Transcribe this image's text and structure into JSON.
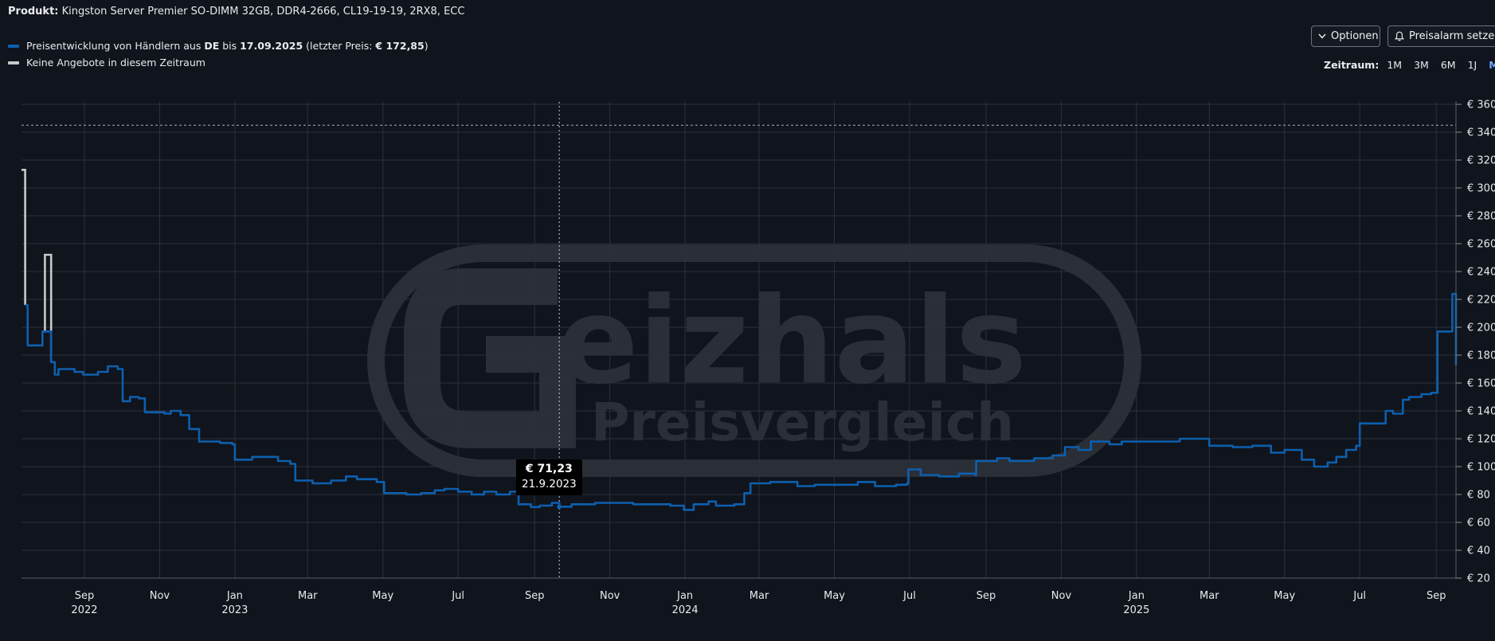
{
  "product": {
    "label": "Produkt:",
    "name": "Kingston Server Premier SO-DIMM 32GB, DDR4-2666, CL19-19-19, 2RX8, ECC"
  },
  "legend": {
    "series1": {
      "pre": "Preisentwicklung von Händlern aus ",
      "country": "DE",
      "mid": " bis ",
      "date": "17.09.2025",
      "post1": " (letzter Preis: ",
      "price": "€ 172,85",
      "post2": ")",
      "color": "#0d5fae"
    },
    "series2": {
      "label": "Keine Angebote in diesem Zeitraum",
      "color": "#c9c9c9"
    }
  },
  "toolbar": {
    "options_label": "Optionen",
    "alarm_label": "Preisalarm setzen",
    "zeitraum_label": "Zeitraum:",
    "zeitraum_options": [
      "1M",
      "3M",
      "6M",
      "1J",
      "Max"
    ],
    "zeitraum_active": "Max"
  },
  "tooltip": {
    "value": "€ 71,23",
    "date": "21.9.2023"
  },
  "watermark": {
    "logo_text": "eizhals",
    "sub_text": "Preisvergleich"
  },
  "chart_data": {
    "type": "line",
    "grid": true,
    "y_axis_side": "right",
    "ylim": [
      20,
      360
    ],
    "y_ticks": [
      "€ 360",
      "€ 340",
      "€ 320",
      "€ 300",
      "€ 280",
      "€ 260",
      "€ 240",
      "€ 220",
      "€ 200",
      "€ 180",
      "€ 160",
      "€ 140",
      "€ 120",
      "€ 100",
      "€ 80",
      "€ 60",
      "€ 40",
      "€ 20"
    ],
    "reference_line": {
      "y": 345,
      "style": "dashed"
    },
    "hover_marker": {
      "x": "2023-09-21",
      "y": 71.23
    },
    "x_ticks": [
      {
        "date": "2022-09-01",
        "month": "Sep",
        "year": "2022"
      },
      {
        "date": "2022-11-01",
        "month": "Nov",
        "year": ""
      },
      {
        "date": "2023-01-01",
        "month": "Jan",
        "year": "2023"
      },
      {
        "date": "2023-03-01",
        "month": "Mar",
        "year": ""
      },
      {
        "date": "2023-05-01",
        "month": "May",
        "year": ""
      },
      {
        "date": "2023-07-01",
        "month": "Jul",
        "year": ""
      },
      {
        "date": "2023-09-01",
        "month": "Sep",
        "year": ""
      },
      {
        "date": "2023-11-01",
        "month": "Nov",
        "year": ""
      },
      {
        "date": "2024-01-01",
        "month": "Jan",
        "year": "2024"
      },
      {
        "date": "2024-03-01",
        "month": "Mar",
        "year": ""
      },
      {
        "date": "2024-05-01",
        "month": "May",
        "year": ""
      },
      {
        "date": "2024-07-01",
        "month": "Jul",
        "year": ""
      },
      {
        "date": "2024-09-01",
        "month": "Sep",
        "year": ""
      },
      {
        "date": "2024-11-01",
        "month": "Nov",
        "year": ""
      },
      {
        "date": "2025-01-01",
        "month": "Jan",
        "year": "2025"
      },
      {
        "date": "2025-03-01",
        "month": "Mar",
        "year": ""
      },
      {
        "date": "2025-05-01",
        "month": "May",
        "year": ""
      },
      {
        "date": "2025-07-01",
        "month": "Jul",
        "year": ""
      },
      {
        "date": "2025-09-01",
        "month": "Sep",
        "year": ""
      }
    ],
    "xlim": [
      "2022-07-12",
      "2025-09-17"
    ],
    "series": [
      {
        "name": "Preisentwicklung von Händlern aus DE",
        "color": "#0d5fae",
        "points": [
          [
            "2022-07-15",
            216
          ],
          [
            "2022-07-17",
            187
          ],
          [
            "2022-07-27",
            187
          ],
          [
            "2022-07-29",
            197
          ],
          [
            "2022-08-05",
            175
          ],
          [
            "2022-08-08",
            166
          ],
          [
            "2022-08-11",
            170
          ],
          [
            "2022-08-24",
            168
          ],
          [
            "2022-08-31",
            166
          ],
          [
            "2022-09-12",
            168
          ],
          [
            "2022-09-20",
            172
          ],
          [
            "2022-09-28",
            170
          ],
          [
            "2022-10-02",
            147
          ],
          [
            "2022-10-08",
            150
          ],
          [
            "2022-10-15",
            149
          ],
          [
            "2022-10-20",
            139
          ],
          [
            "2022-11-05",
            138
          ],
          [
            "2022-11-10",
            140
          ],
          [
            "2022-11-18",
            137
          ],
          [
            "2022-11-25",
            127
          ],
          [
            "2022-12-03",
            118
          ],
          [
            "2022-12-20",
            117
          ],
          [
            "2022-12-30",
            116
          ],
          [
            "2023-01-01",
            105
          ],
          [
            "2023-01-15",
            107
          ],
          [
            "2023-02-05",
            104
          ],
          [
            "2023-02-15",
            102
          ],
          [
            "2023-02-19",
            90
          ],
          [
            "2023-03-05",
            88
          ],
          [
            "2023-03-20",
            90
          ],
          [
            "2023-04-01",
            93
          ],
          [
            "2023-04-10",
            91
          ],
          [
            "2023-04-26",
            89
          ],
          [
            "2023-05-02",
            81
          ],
          [
            "2023-05-20",
            80
          ],
          [
            "2023-06-01",
            81
          ],
          [
            "2023-06-12",
            83
          ],
          [
            "2023-06-20",
            84
          ],
          [
            "2023-07-01",
            82
          ],
          [
            "2023-07-12",
            80
          ],
          [
            "2023-07-22",
            82
          ],
          [
            "2023-08-01",
            80
          ],
          [
            "2023-08-12",
            82
          ],
          [
            "2023-08-19",
            73
          ],
          [
            "2023-08-29",
            71
          ],
          [
            "2023-09-05",
            72
          ],
          [
            "2023-09-15",
            74
          ],
          [
            "2023-09-21",
            71.23
          ],
          [
            "2023-10-01",
            73
          ],
          [
            "2023-10-20",
            74
          ],
          [
            "2023-11-01",
            74
          ],
          [
            "2023-11-20",
            73
          ],
          [
            "2023-12-05",
            73
          ],
          [
            "2023-12-20",
            72
          ],
          [
            "2023-12-31",
            69
          ],
          [
            "2024-01-08",
            73
          ],
          [
            "2024-01-20",
            75
          ],
          [
            "2024-01-26",
            72
          ],
          [
            "2024-02-10",
            73
          ],
          [
            "2024-02-18",
            81
          ],
          [
            "2024-02-23",
            88
          ],
          [
            "2024-03-10",
            89
          ],
          [
            "2024-04-01",
            86
          ],
          [
            "2024-04-15",
            87
          ],
          [
            "2024-05-01",
            87
          ],
          [
            "2024-05-20",
            89
          ],
          [
            "2024-06-03",
            86
          ],
          [
            "2024-06-20",
            87
          ],
          [
            "2024-06-29",
            88
          ],
          [
            "2024-06-30",
            98
          ],
          [
            "2024-07-10",
            94
          ],
          [
            "2024-07-25",
            93
          ],
          [
            "2024-08-10",
            95
          ],
          [
            "2024-08-23",
            94
          ],
          [
            "2024-08-24",
            104
          ],
          [
            "2024-09-10",
            106
          ],
          [
            "2024-09-20",
            104
          ],
          [
            "2024-10-10",
            106
          ],
          [
            "2024-10-25",
            108
          ],
          [
            "2024-11-04",
            114
          ],
          [
            "2024-11-15",
            112
          ],
          [
            "2024-11-25",
            118
          ],
          [
            "2024-12-10",
            116
          ],
          [
            "2024-12-20",
            118
          ],
          [
            "2025-01-05",
            118
          ],
          [
            "2025-01-25",
            118
          ],
          [
            "2025-02-05",
            120
          ],
          [
            "2025-02-20",
            120
          ],
          [
            "2025-03-01",
            115
          ],
          [
            "2025-03-20",
            114
          ],
          [
            "2025-04-05",
            115
          ],
          [
            "2025-04-20",
            110
          ],
          [
            "2025-05-01",
            112
          ],
          [
            "2025-05-15",
            105
          ],
          [
            "2025-05-25",
            100
          ],
          [
            "2025-06-05",
            103
          ],
          [
            "2025-06-12",
            107
          ],
          [
            "2025-06-20",
            112
          ],
          [
            "2025-06-28",
            115
          ],
          [
            "2025-07-01",
            131
          ],
          [
            "2025-07-15",
            131
          ],
          [
            "2025-07-22",
            140
          ],
          [
            "2025-07-28",
            138
          ],
          [
            "2025-08-05",
            148
          ],
          [
            "2025-08-10",
            150
          ],
          [
            "2025-08-20",
            152
          ],
          [
            "2025-08-28",
            153
          ],
          [
            "2025-09-02",
            197
          ],
          [
            "2025-09-10",
            197
          ],
          [
            "2025-09-14",
            224
          ],
          [
            "2025-09-17",
            172.85
          ]
        ]
      },
      {
        "name": "Keine Angebote in diesem Zeitraum",
        "color": "#c9c9c9",
        "segments": [
          [
            [
              "2022-07-12",
              313
            ],
            [
              "2022-07-14",
              313
            ],
            [
              "2022-07-15",
              216
            ]
          ],
          [
            [
              "2022-07-29",
              197
            ],
            [
              "2022-07-31",
              252
            ],
            [
              "2022-08-05",
              252
            ],
            [
              "2022-08-05",
              175
            ]
          ]
        ]
      }
    ]
  }
}
